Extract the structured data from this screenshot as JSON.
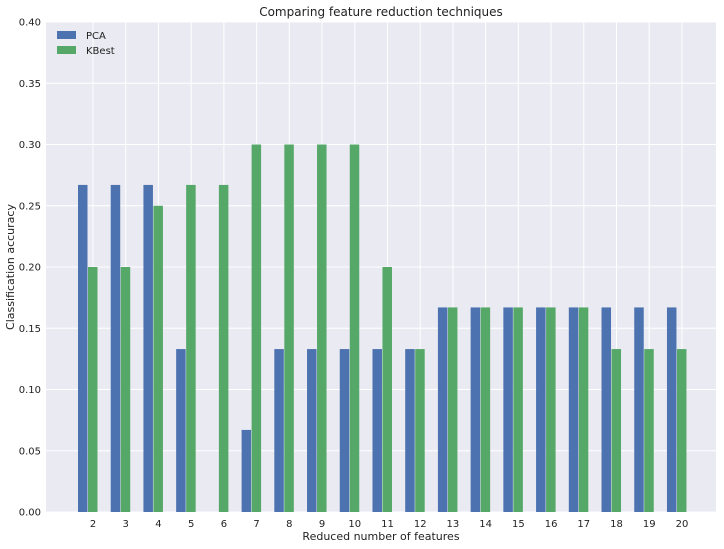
{
  "chart_data": {
    "type": "bar",
    "title": "Comparing feature reduction techniques",
    "xlabel": "Reduced number of features",
    "ylabel": "Classification accuracy",
    "ylim": [
      0,
      0.4
    ],
    "yticks": [
      "0.00",
      "0.05",
      "0.10",
      "0.15",
      "0.20",
      "0.25",
      "0.30",
      "0.35",
      "0.40"
    ],
    "categories": [
      "2",
      "3",
      "4",
      "5",
      "6",
      "7",
      "8",
      "9",
      "10",
      "11",
      "12",
      "13",
      "14",
      "15",
      "16",
      "17",
      "18",
      "19",
      "20"
    ],
    "series": [
      {
        "name": "PCA",
        "color": "#4c72b0",
        "values": [
          0.267,
          0.267,
          0.267,
          0.133,
          0.0,
          0.067,
          0.133,
          0.133,
          0.133,
          0.133,
          0.133,
          0.167,
          0.167,
          0.167,
          0.167,
          0.167,
          0.167,
          0.167,
          0.167
        ]
      },
      {
        "name": "KBest",
        "color": "#55a868",
        "values": [
          0.2,
          0.2,
          0.25,
          0.267,
          0.267,
          0.3,
          0.3,
          0.3,
          0.3,
          0.2,
          0.133,
          0.167,
          0.167,
          0.167,
          0.167,
          0.167,
          0.133,
          0.133,
          0.133
        ]
      }
    ],
    "grid": true,
    "legend_position": "top-left",
    "background": "#eaeaf2"
  }
}
